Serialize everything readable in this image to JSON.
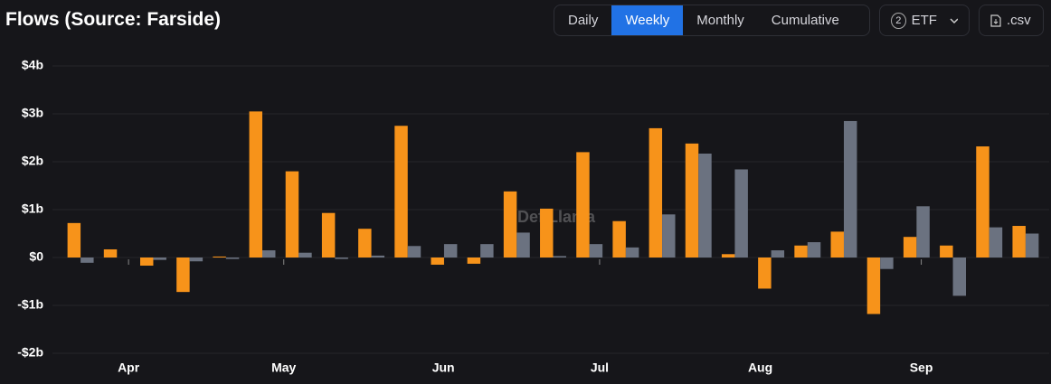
{
  "chart_data": {
    "type": "bar",
    "title": "Flows (Source: Farside)",
    "categories": [
      null,
      null,
      null,
      null,
      null,
      null,
      null,
      null,
      null,
      null,
      null,
      null,
      null,
      null,
      null,
      null,
      null,
      null,
      null,
      null,
      null,
      null,
      null,
      null,
      null,
      null,
      null
    ],
    "series": [
      {
        "color": "#f7931a",
        "values": [
          0.72,
          0.17,
          -0.17,
          -0.72,
          0.02,
          3.05,
          1.8,
          0.93,
          0.6,
          2.75,
          -0.15,
          -0.13,
          1.38,
          1.02,
          2.2,
          0.76,
          2.7,
          2.38,
          0.07,
          -0.65,
          0.25,
          0.54,
          -1.18,
          0.43,
          0.25,
          2.32,
          0.66
        ]
      },
      {
        "color": "#6b7280",
        "values": [
          -0.11,
          0,
          -0.05,
          -0.08,
          -0.03,
          0.15,
          0.1,
          -0.03,
          0.04,
          0.24,
          0.28,
          0.28,
          0.52,
          0.03,
          0.28,
          0.21,
          0.9,
          2.17,
          1.84,
          0.15,
          0.32,
          2.85,
          -0.24,
          1.07,
          -0.8,
          0.63,
          0.5
        ]
      }
    ],
    "xlim": [
      -0.5,
      26.5
    ],
    "xticks": [
      {
        "value": 1.32,
        "label": "Apr"
      },
      {
        "value": 5.59,
        "label": "May"
      },
      {
        "value": 9.98,
        "label": "Jun"
      },
      {
        "value": 14.28,
        "label": "Jul"
      },
      {
        "value": 18.7,
        "label": "Aug"
      },
      {
        "value": 23.13,
        "label": "Sep"
      }
    ],
    "ylim": [
      -2,
      4
    ],
    "yticks": [
      {
        "value": -2,
        "label": "-$2b"
      },
      {
        "value": -1,
        "label": "-$1b"
      },
      {
        "value": 0,
        "label": "$0"
      },
      {
        "value": 1,
        "label": "$1b"
      },
      {
        "value": 2,
        "label": "$2b"
      },
      {
        "value": 3,
        "label": "$3b"
      },
      {
        "value": 4,
        "label": "$4b"
      }
    ],
    "grid": true
  },
  "controls": {
    "tabs": [
      "Daily",
      "Weekly",
      "Monthly",
      "Cumulative"
    ],
    "active_tab": 1,
    "filter_count": 2,
    "filter_label": "ETF",
    "download": ".csv"
  },
  "watermark": "DefiLlama"
}
